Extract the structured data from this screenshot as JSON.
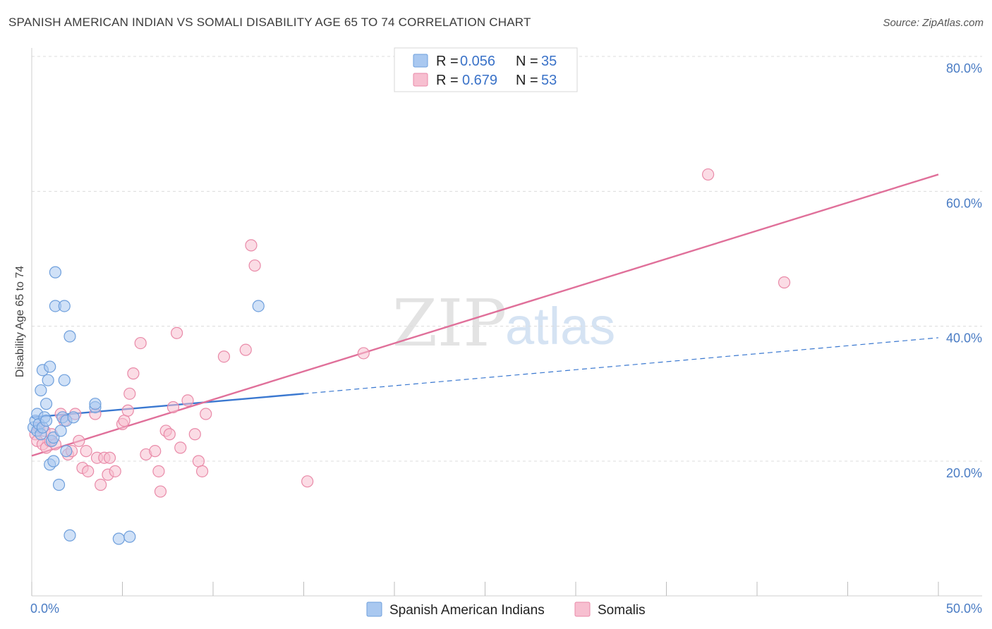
{
  "header": {
    "title": "SPANISH AMERICAN INDIAN VS SOMALI DISABILITY AGE 65 TO 74 CORRELATION CHART",
    "source": "Source: ZipAtlas.com"
  },
  "watermark": {
    "zip": "ZIP",
    "atlas": "atlas"
  },
  "legend": {
    "rows": [
      {
        "r_label": "R =",
        "r_value": "0.056",
        "n_label": "N =",
        "n_value": "35",
        "color": "#a9c8f0",
        "stroke": "#6e9fdc"
      },
      {
        "r_label": "R =",
        "r_value": "0.679",
        "n_label": "N =",
        "n_value": "53",
        "color": "#f7bfd0",
        "stroke": "#e98aa8"
      }
    ]
  },
  "bottom_legend": {
    "items": [
      {
        "label": "Spanish American Indians",
        "color": "#a9c8f0",
        "stroke": "#6e9fdc"
      },
      {
        "label": "Somalis",
        "color": "#f7bfd0",
        "stroke": "#e98aa8"
      }
    ]
  },
  "chart_data": {
    "type": "scatter",
    "title": "SPANISH AMERICAN INDIAN VS SOMALI DISABILITY AGE 65 TO 74 CORRELATION CHART",
    "xlabel": "",
    "ylabel": "Disability Age 65 to 74",
    "xlim": [
      0,
      50
    ],
    "ylim": [
      0,
      82
    ],
    "x_tick_labels": [
      {
        "value": 0,
        "label": "0.0%"
      },
      {
        "value": 50,
        "label": "50.0%"
      }
    ],
    "y_tick_labels": [
      {
        "value": 20,
        "label": "20.0%"
      },
      {
        "value": 40,
        "label": "40.0%"
      },
      {
        "value": 60,
        "label": "60.0%"
      },
      {
        "value": 80,
        "label": "80.0%"
      }
    ],
    "x_minor_ticks": [
      0,
      5,
      10,
      15,
      20,
      25,
      30,
      35,
      40,
      45,
      50
    ],
    "grid": true,
    "series": [
      {
        "name": "Spanish American Indians",
        "color": "#a9c8f0",
        "stroke": "#6e9fdc",
        "trend_color": "#3a78d0",
        "trend_solid": [
          [
            0,
            26.5
          ],
          [
            15,
            30.0
          ]
        ],
        "trend_dashed": [
          [
            15,
            30.0
          ],
          [
            50,
            38.3
          ]
        ],
        "points": [
          [
            0.1,
            25.0
          ],
          [
            0.2,
            26.0
          ],
          [
            0.3,
            24.5
          ],
          [
            0.3,
            27.0
          ],
          [
            0.4,
            25.5
          ],
          [
            0.5,
            24.0
          ],
          [
            0.5,
            30.5
          ],
          [
            0.6,
            25.0
          ],
          [
            0.6,
            33.5
          ],
          [
            0.7,
            26.5
          ],
          [
            0.8,
            28.5
          ],
          [
            0.9,
            32.0
          ],
          [
            1.0,
            19.5
          ],
          [
            1.0,
            34.0
          ],
          [
            1.1,
            23.0
          ],
          [
            1.2,
            20.0
          ],
          [
            1.2,
            23.5
          ],
          [
            1.3,
            48.0
          ],
          [
            1.3,
            43.0
          ],
          [
            1.5,
            16.5
          ],
          [
            1.6,
            24.5
          ],
          [
            1.7,
            26.5
          ],
          [
            1.8,
            43.0
          ],
          [
            1.8,
            32.0
          ],
          [
            1.9,
            21.5
          ],
          [
            1.9,
            26.0
          ],
          [
            2.1,
            38.5
          ],
          [
            2.1,
            9.0
          ],
          [
            2.3,
            26.5
          ],
          [
            3.5,
            28.0
          ],
          [
            3.5,
            28.5
          ],
          [
            4.8,
            8.5
          ],
          [
            5.4,
            8.8
          ],
          [
            12.5,
            43.0
          ],
          [
            0.8,
            26.0
          ]
        ]
      },
      {
        "name": "Somalis",
        "color": "#f7bfd0",
        "stroke": "#e98aa8",
        "trend_color": "#e0709a",
        "trend_solid": [
          [
            0,
            20.8
          ],
          [
            50,
            62.5
          ]
        ],
        "trend_dashed": [],
        "points": [
          [
            0.2,
            24.0
          ],
          [
            0.3,
            23.0
          ],
          [
            0.4,
            25.0
          ],
          [
            0.6,
            22.5
          ],
          [
            0.7,
            24.5
          ],
          [
            0.8,
            22.0
          ],
          [
            1.0,
            23.0
          ],
          [
            1.1,
            24.0
          ],
          [
            1.3,
            22.5
          ],
          [
            1.6,
            27.0
          ],
          [
            1.8,
            26.0
          ],
          [
            2.0,
            21.0
          ],
          [
            2.2,
            21.5
          ],
          [
            2.4,
            27.0
          ],
          [
            2.6,
            23.0
          ],
          [
            2.8,
            19.0
          ],
          [
            3.0,
            21.5
          ],
          [
            3.1,
            18.5
          ],
          [
            3.5,
            27.0
          ],
          [
            3.6,
            20.5
          ],
          [
            3.8,
            16.5
          ],
          [
            4.0,
            20.5
          ],
          [
            4.2,
            18.0
          ],
          [
            4.3,
            20.5
          ],
          [
            4.6,
            18.5
          ],
          [
            5.0,
            25.5
          ],
          [
            5.1,
            26.0
          ],
          [
            5.3,
            27.5
          ],
          [
            5.4,
            30.0
          ],
          [
            5.6,
            33.0
          ],
          [
            6.0,
            37.5
          ],
          [
            6.3,
            21.0
          ],
          [
            6.8,
            21.5
          ],
          [
            7.0,
            18.5
          ],
          [
            7.1,
            15.5
          ],
          [
            7.4,
            24.5
          ],
          [
            7.6,
            24.0
          ],
          [
            7.8,
            28.0
          ],
          [
            8.0,
            39.0
          ],
          [
            8.2,
            22.0
          ],
          [
            8.6,
            29.0
          ],
          [
            9.0,
            24.0
          ],
          [
            9.2,
            20.0
          ],
          [
            9.4,
            18.5
          ],
          [
            9.6,
            27.0
          ],
          [
            10.6,
            35.5
          ],
          [
            11.8,
            36.5
          ],
          [
            12.1,
            52.0
          ],
          [
            12.3,
            49.0
          ],
          [
            15.2,
            17.0
          ],
          [
            18.3,
            36.0
          ],
          [
            37.3,
            62.5
          ],
          [
            41.5,
            46.5
          ]
        ]
      }
    ]
  }
}
